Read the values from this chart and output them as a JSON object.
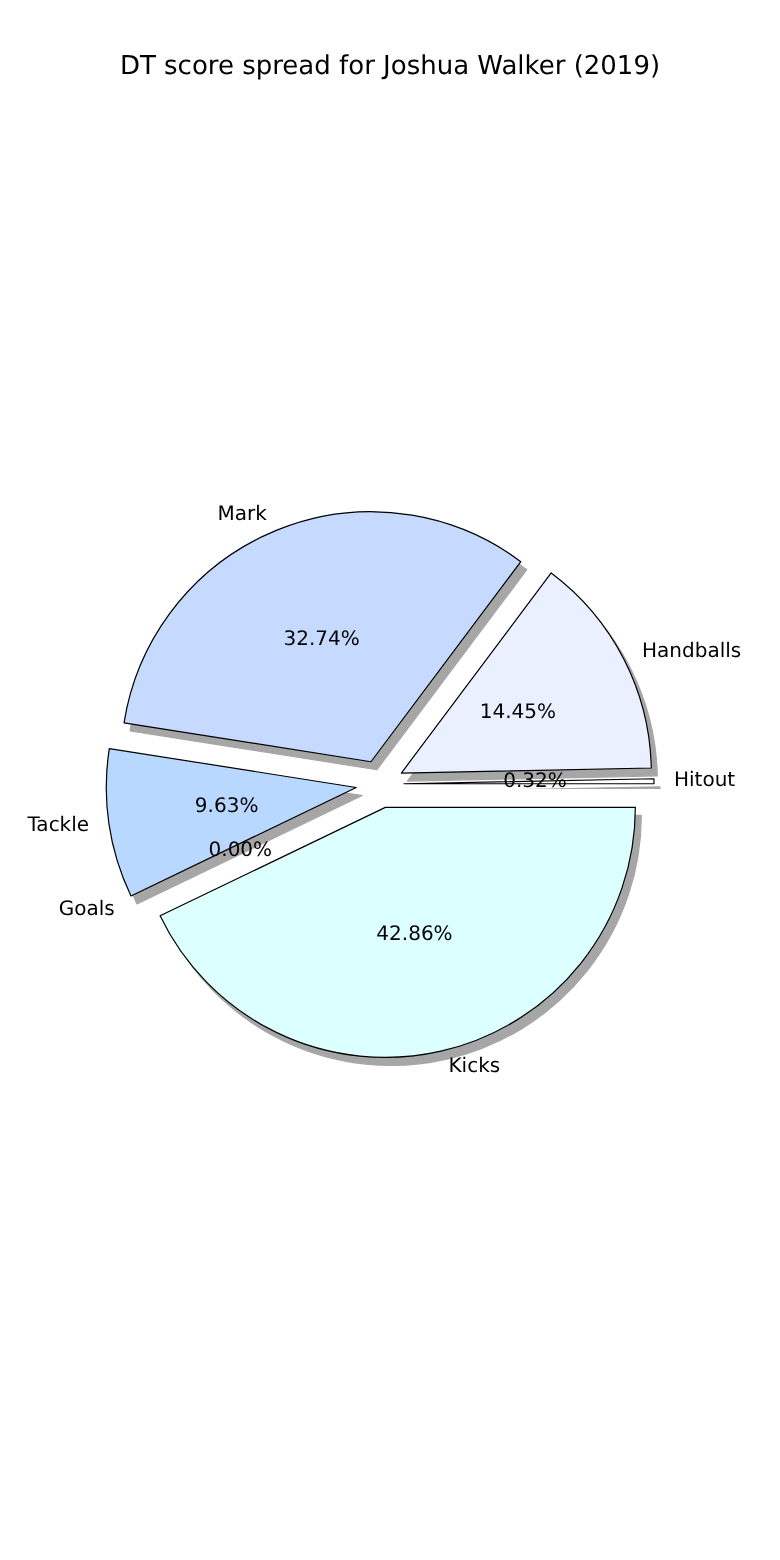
{
  "chart_data": {
    "type": "pie",
    "title": "DT score spread for Joshua Walker (2019)",
    "categories": [
      "Hitout",
      "Handballs",
      "Mark",
      "Tackle",
      "Goals",
      "Kicks"
    ],
    "values": [
      0.32,
      14.45,
      32.74,
      9.63,
      0.0,
      42.86
    ],
    "value_labels": [
      "0.32%",
      "14.45%",
      "32.74%",
      "9.63%",
      "0.00%",
      "42.86%"
    ],
    "colors": [
      "#ffffff",
      "#eaf0ff",
      "#c6d9ff",
      "#b8d8ff",
      "#cfe6ff",
      "#dcffff"
    ]
  }
}
